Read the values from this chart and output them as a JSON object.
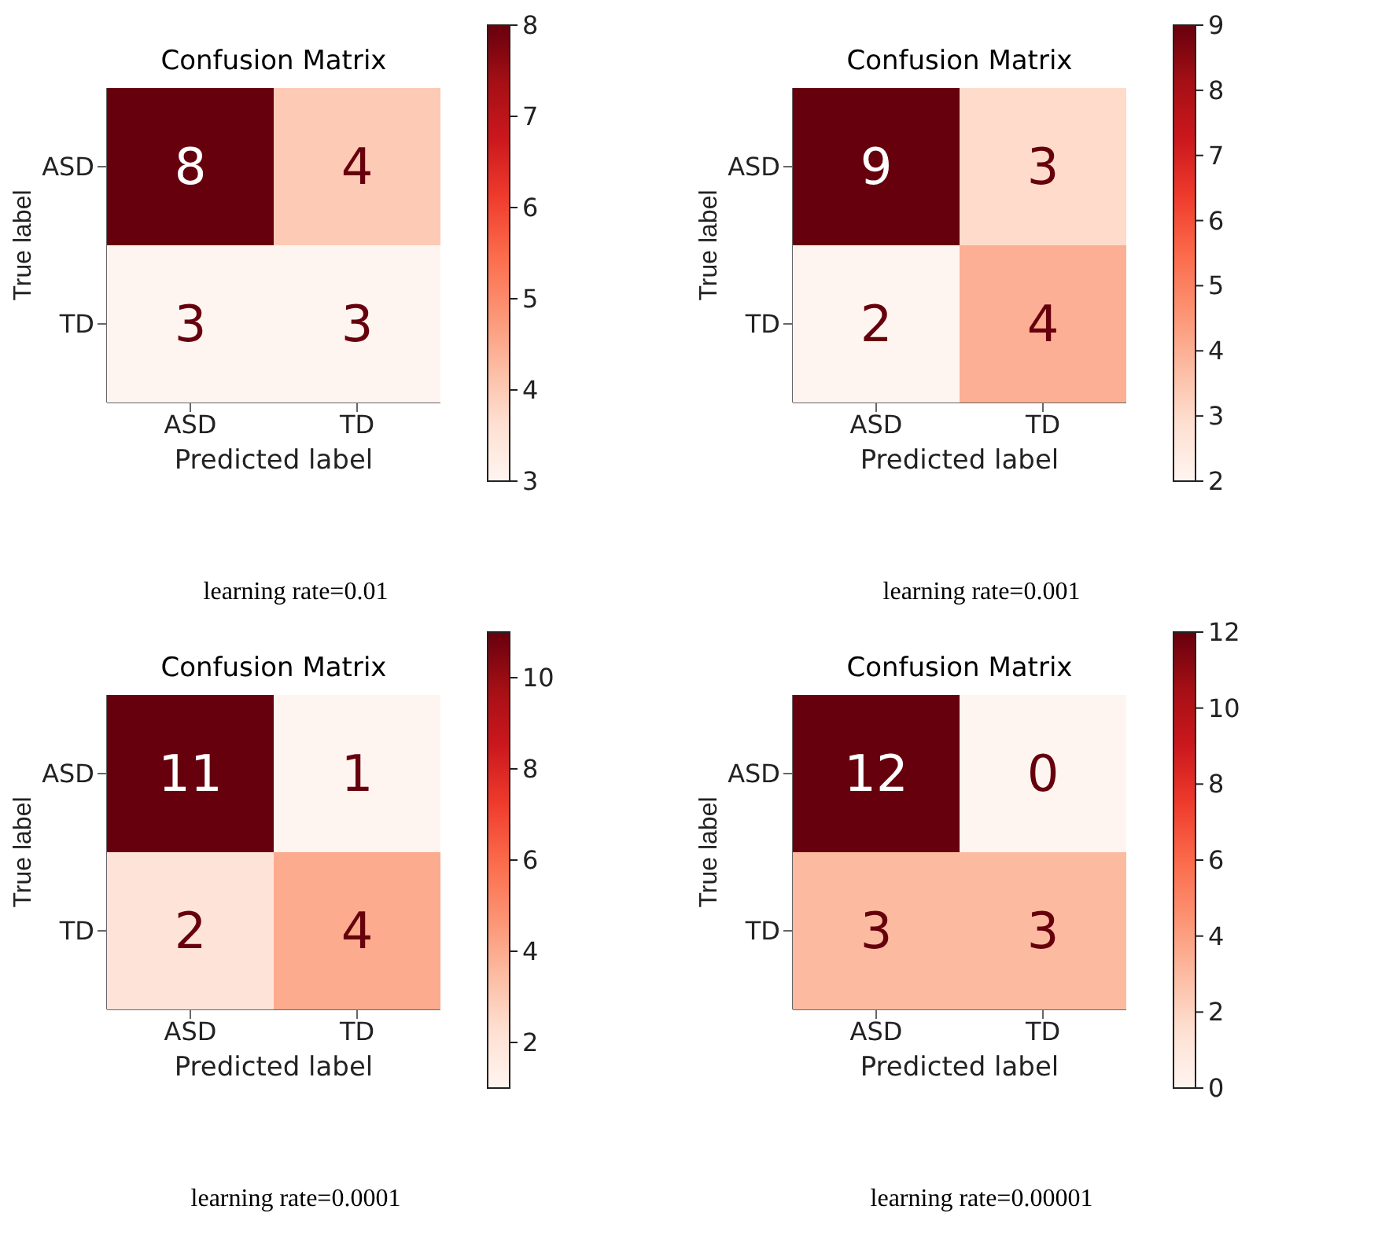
{
  "chart_data": [
    {
      "type": "heatmap",
      "title": "Confusion Matrix",
      "xlabel": "Predicted label",
      "ylabel": "True label",
      "categories": [
        "ASD",
        "TD"
      ],
      "y_categories": [
        "ASD",
        "TD"
      ],
      "cells": [
        [
          8,
          4
        ],
        [
          3,
          3
        ]
      ],
      "clim": [
        3,
        8
      ],
      "cticks": [
        3,
        4,
        5,
        6,
        7,
        8
      ],
      "data_labels": true,
      "annotations": [
        "learning rate=0.01"
      ]
    },
    {
      "type": "heatmap",
      "title": "Confusion Matrix",
      "xlabel": "Predicted label",
      "ylabel": "True label",
      "categories": [
        "ASD",
        "TD"
      ],
      "y_categories": [
        "ASD",
        "TD"
      ],
      "cells": [
        [
          9,
          3
        ],
        [
          2,
          4
        ]
      ],
      "clim": [
        2,
        9
      ],
      "cticks": [
        2,
        3,
        4,
        5,
        6,
        7,
        8,
        9
      ],
      "data_labels": true,
      "annotations": [
        "learning rate=0.001"
      ]
    },
    {
      "type": "heatmap",
      "title": "Confusion Matrix",
      "xlabel": "Predicted label",
      "ylabel": "True label",
      "categories": [
        "ASD",
        "TD"
      ],
      "y_categories": [
        "ASD",
        "TD"
      ],
      "cells": [
        [
          11,
          1
        ],
        [
          2,
          4
        ]
      ],
      "clim": [
        1,
        11
      ],
      "cticks": [
        2,
        4,
        6,
        8,
        10
      ],
      "data_labels": true,
      "annotations": [
        "learning rate=0.0001"
      ]
    },
    {
      "type": "heatmap",
      "title": "Confusion Matrix",
      "xlabel": "Predicted label",
      "ylabel": "True label",
      "categories": [
        "ASD",
        "TD"
      ],
      "y_categories": [
        "ASD",
        "TD"
      ],
      "cells": [
        [
          12,
          0
        ],
        [
          3,
          3
        ]
      ],
      "clim": [
        0,
        12
      ],
      "cticks": [
        0,
        2,
        4,
        6,
        8,
        10,
        12
      ],
      "data_labels": true,
      "annotations": [
        "learning rate=0.00001"
      ]
    }
  ]
}
